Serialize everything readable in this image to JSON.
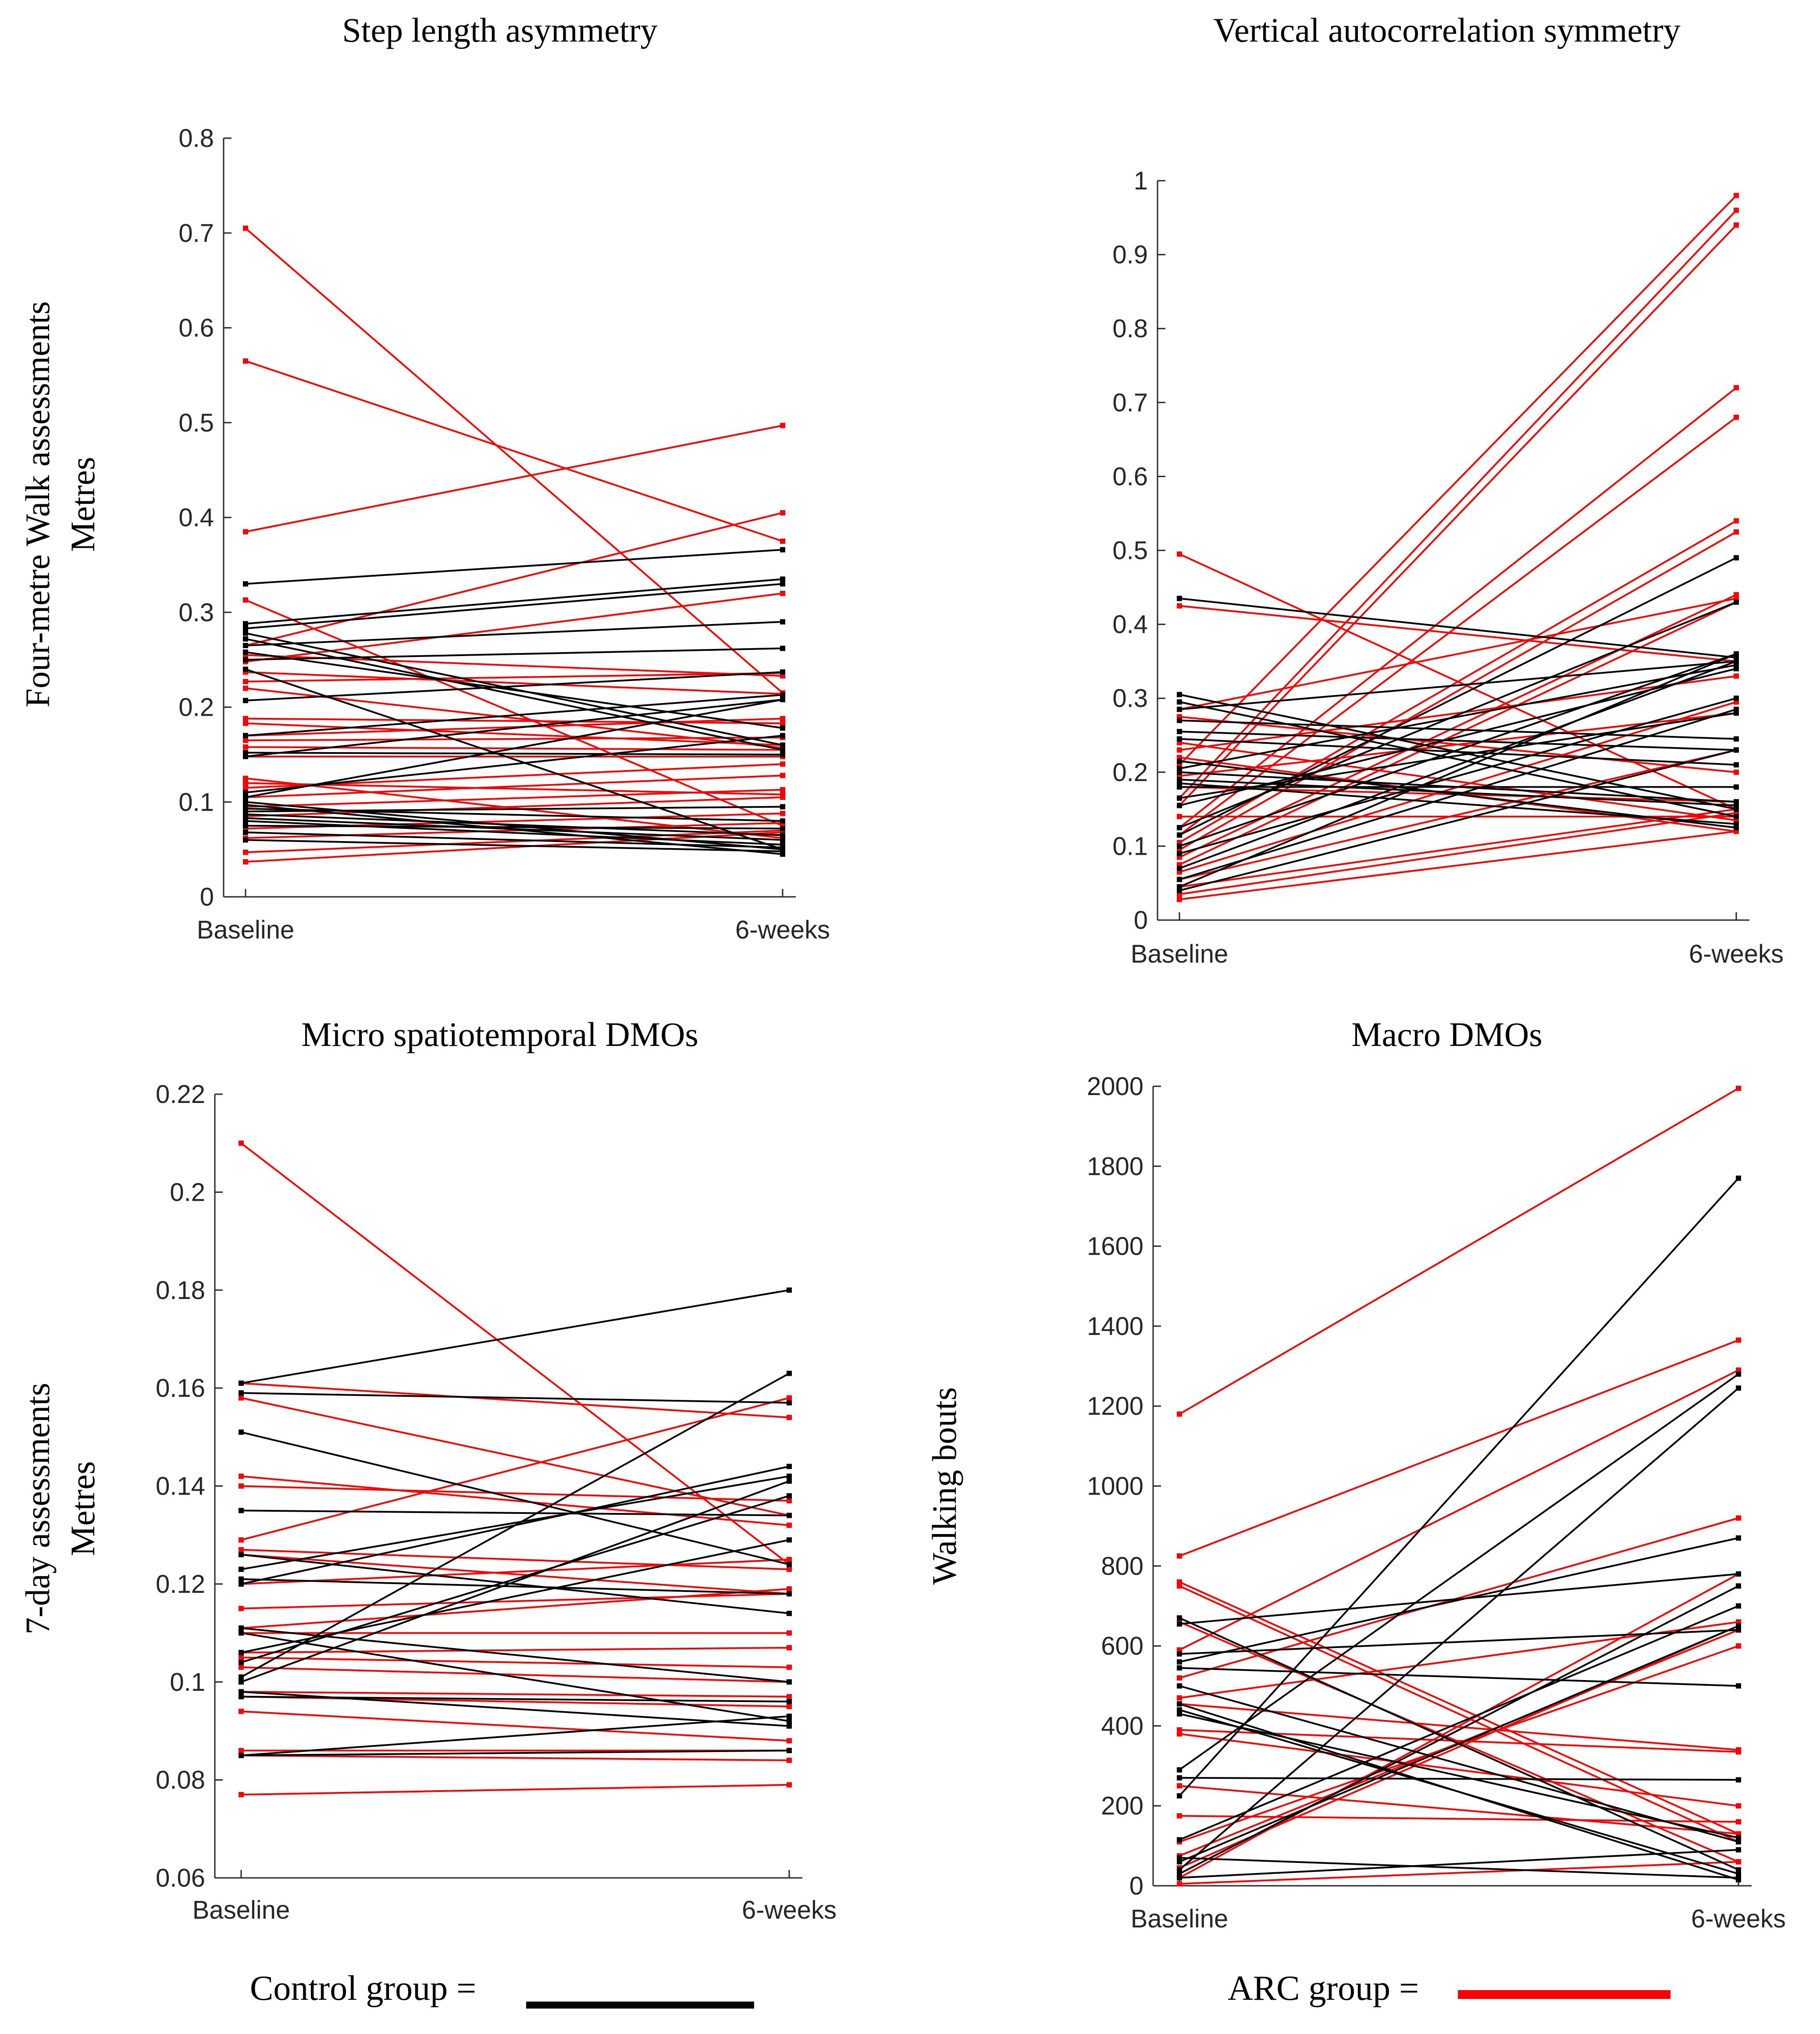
{
  "row_labels": [
    {
      "line1": "Four-metre Walk assessments",
      "line2": "Metres"
    },
    {
      "line1": "7-day assessments",
      "line2": "Metres"
    }
  ],
  "legend": {
    "control_label": "Control group =",
    "arc_label": "ARC group =",
    "control_color": "#000000",
    "arc_color": "#ff0000"
  },
  "chart_data": [
    {
      "type": "line",
      "title": "Step length asymmetry",
      "xlabel": "",
      "ylabel": "",
      "categories": [
        "Baseline",
        "6-weeks"
      ],
      "ylim": [
        0,
        0.8
      ],
      "yticks": [
        0,
        0.1,
        0.2,
        0.3,
        0.4,
        0.5,
        0.6,
        0.7,
        0.8
      ],
      "series": [
        {
          "name": "ARC group",
          "color": "#ff0000",
          "pairs": [
            [
              0.705,
              0.215
            ],
            [
              0.565,
              0.375
            ],
            [
              0.385,
              0.497
            ],
            [
              0.313,
              0.075
            ],
            [
              0.265,
              0.405
            ],
            [
              0.255,
              0.233
            ],
            [
              0.248,
              0.32
            ],
            [
              0.237,
              0.214
            ],
            [
              0.227,
              0.236
            ],
            [
              0.22,
              0.157
            ],
            [
              0.188,
              0.183
            ],
            [
              0.183,
              0.16
            ],
            [
              0.17,
              0.188
            ],
            [
              0.165,
              0.168
            ],
            [
              0.158,
              0.155
            ],
            [
              0.148,
              0.148
            ],
            [
              0.125,
              0.062
            ],
            [
              0.12,
              0.108
            ],
            [
              0.115,
              0.14
            ],
            [
              0.105,
              0.128
            ],
            [
              0.095,
              0.113
            ],
            [
              0.085,
              0.105
            ],
            [
              0.072,
              0.088
            ],
            [
              0.062,
              0.078
            ],
            [
              0.047,
              0.07
            ],
            [
              0.037,
              0.068
            ]
          ]
        },
        {
          "name": "Control group",
          "color": "#000000",
          "pairs": [
            [
              0.33,
              0.366
            ],
            [
              0.288,
              0.335
            ],
            [
              0.283,
              0.33
            ],
            [
              0.278,
              0.16
            ],
            [
              0.272,
              0.155
            ],
            [
              0.265,
              0.29
            ],
            [
              0.258,
              0.178
            ],
            [
              0.25,
              0.262
            ],
            [
              0.24,
              0.05
            ],
            [
              0.207,
              0.237
            ],
            [
              0.17,
              0.213
            ],
            [
              0.152,
              0.15
            ],
            [
              0.148,
              0.208
            ],
            [
              0.11,
              0.17
            ],
            [
              0.105,
              0.208
            ],
            [
              0.1,
              0.05
            ],
            [
              0.097,
              0.045
            ],
            [
              0.093,
              0.08
            ],
            [
              0.09,
              0.095
            ],
            [
              0.087,
              0.065
            ],
            [
              0.083,
              0.06
            ],
            [
              0.08,
              0.055
            ],
            [
              0.075,
              0.072
            ],
            [
              0.068,
              0.052
            ],
            [
              0.06,
              0.048
            ]
          ]
        }
      ]
    },
    {
      "type": "line",
      "title": "Vertical autocorrelation symmetry",
      "xlabel": "",
      "ylabel": "",
      "categories": [
        "Baseline",
        "6-weeks"
      ],
      "ylim": [
        0,
        1
      ],
      "yticks": [
        0,
        0.1,
        0.2,
        0.3,
        0.4,
        0.5,
        0.6,
        0.7,
        0.8,
        0.9,
        1
      ],
      "series": [
        {
          "name": "ARC group",
          "color": "#ff0000",
          "pairs": [
            [
              0.495,
              0.15
            ],
            [
              0.425,
              0.35
            ],
            [
              0.285,
              0.435
            ],
            [
              0.275,
              0.2
            ],
            [
              0.24,
              0.135
            ],
            [
              0.23,
              0.33
            ],
            [
              0.22,
              0.12
            ],
            [
              0.21,
              0.98
            ],
            [
              0.195,
              0.28
            ],
            [
              0.18,
              0.16
            ],
            [
              0.165,
              0.96
            ],
            [
              0.155,
              0.94
            ],
            [
              0.14,
              0.14
            ],
            [
              0.125,
              0.72
            ],
            [
              0.115,
              0.68
            ],
            [
              0.105,
              0.54
            ],
            [
              0.095,
              0.525
            ],
            [
              0.085,
              0.44
            ],
            [
              0.075,
              0.43
            ],
            [
              0.065,
              0.295
            ],
            [
              0.055,
              0.23
            ],
            [
              0.045,
              0.15
            ],
            [
              0.035,
              0.145
            ],
            [
              0.028,
              0.12
            ]
          ]
        },
        {
          "name": "Control group",
          "color": "#000000",
          "pairs": [
            [
              0.435,
              0.355
            ],
            [
              0.305,
              0.15
            ],
            [
              0.295,
              0.14
            ],
            [
              0.285,
              0.35
            ],
            [
              0.27,
              0.245
            ],
            [
              0.255,
              0.23
            ],
            [
              0.245,
              0.21
            ],
            [
              0.215,
              0.125
            ],
            [
              0.205,
              0.345
            ],
            [
              0.2,
              0.16
            ],
            [
              0.19,
              0.155
            ],
            [
              0.185,
              0.13
            ],
            [
              0.18,
              0.18
            ],
            [
              0.165,
              0.28
            ],
            [
              0.155,
              0.34
            ],
            [
              0.125,
              0.43
            ],
            [
              0.115,
              0.49
            ],
            [
              0.1,
              0.36
            ],
            [
              0.09,
              0.3
            ],
            [
              0.07,
              0.35
            ],
            [
              0.055,
              0.285
            ],
            [
              0.045,
              0.36
            ],
            [
              0.04,
              0.23
            ]
          ]
        }
      ]
    },
    {
      "type": "line",
      "title": "Micro spatiotemporal DMOs",
      "xlabel": "",
      "ylabel": "",
      "categories": [
        "Baseline",
        "6-weeks"
      ],
      "ylim": [
        0.06,
        0.22
      ],
      "yticks": [
        0.06,
        0.08,
        0.1,
        0.12,
        0.14,
        0.16,
        0.18,
        0.2,
        0.22
      ],
      "series": [
        {
          "name": "ARC group",
          "color": "#ff0000",
          "pairs": [
            [
              0.21,
              0.124
            ],
            [
              0.161,
              0.154
            ],
            [
              0.158,
              0.134
            ],
            [
              0.142,
              0.132
            ],
            [
              0.14,
              0.137
            ],
            [
              0.129,
              0.158
            ],
            [
              0.127,
              0.123
            ],
            [
              0.126,
              0.118
            ],
            [
              0.12,
              0.125
            ],
            [
              0.115,
              0.118
            ],
            [
              0.111,
              0.119
            ],
            [
              0.11,
              0.11
            ],
            [
              0.106,
              0.107
            ],
            [
              0.105,
              0.103
            ],
            [
              0.103,
              0.1
            ],
            [
              0.098,
              0.097
            ],
            [
              0.097,
              0.095
            ],
            [
              0.094,
              0.088
            ],
            [
              0.086,
              0.086
            ],
            [
              0.085,
              0.084
            ],
            [
              0.077,
              0.079
            ]
          ]
        },
        {
          "name": "Control group",
          "color": "#000000",
          "pairs": [
            [
              0.161,
              0.18
            ],
            [
              0.159,
              0.157
            ],
            [
              0.151,
              0.124
            ],
            [
              0.135,
              0.134
            ],
            [
              0.126,
              0.114
            ],
            [
              0.123,
              0.142
            ],
            [
              0.121,
              0.118
            ],
            [
              0.12,
              0.144
            ],
            [
              0.111,
              0.1
            ],
            [
              0.11,
              0.092
            ],
            [
              0.106,
              0.129
            ],
            [
              0.104,
              0.138
            ],
            [
              0.101,
              0.163
            ],
            [
              0.1,
              0.141
            ],
            [
              0.098,
              0.091
            ],
            [
              0.097,
              0.096
            ],
            [
              0.085,
              0.093
            ],
            [
              0.085,
              0.086
            ]
          ]
        }
      ]
    },
    {
      "type": "line",
      "title": "Macro DMOs",
      "xlabel": "",
      "ylabel": "Walking bouts",
      "categories": [
        "Baseline",
        "6-weeks"
      ],
      "ylim": [
        0,
        2000
      ],
      "yticks": [
        0,
        200,
        400,
        600,
        800,
        1000,
        1200,
        1400,
        1600,
        1800,
        2000
      ],
      "series": [
        {
          "name": "ARC group",
          "color": "#ff0000",
          "pairs": [
            [
              1180,
              1995
            ],
            [
              825,
              1365
            ],
            [
              760,
              130
            ],
            [
              750,
              110
            ],
            [
              660,
              60
            ],
            [
              590,
              1290
            ],
            [
              520,
              920
            ],
            [
              470,
              660
            ],
            [
              455,
              340
            ],
            [
              390,
              335
            ],
            [
              380,
              200
            ],
            [
              250,
              130
            ],
            [
              175,
              160
            ],
            [
              110,
              600
            ],
            [
              75,
              640
            ],
            [
              45,
              650
            ],
            [
              20,
              780
            ],
            [
              5,
              60
            ]
          ]
        },
        {
          "name": "Control group",
          "color": "#000000",
          "pairs": [
            [
              670,
              40
            ],
            [
              655,
              780
            ],
            [
              580,
              640
            ],
            [
              560,
              870
            ],
            [
              545,
              500
            ],
            [
              500,
              110
            ],
            [
              455,
              15
            ],
            [
              440,
              30
            ],
            [
              430,
              120
            ],
            [
              290,
              1280
            ],
            [
              270,
              265
            ],
            [
              225,
              1770
            ],
            [
              115,
              700
            ],
            [
              70,
              20
            ],
            [
              60,
              650
            ],
            [
              40,
              1245
            ],
            [
              30,
              750
            ],
            [
              20,
              90
            ]
          ]
        }
      ]
    }
  ]
}
